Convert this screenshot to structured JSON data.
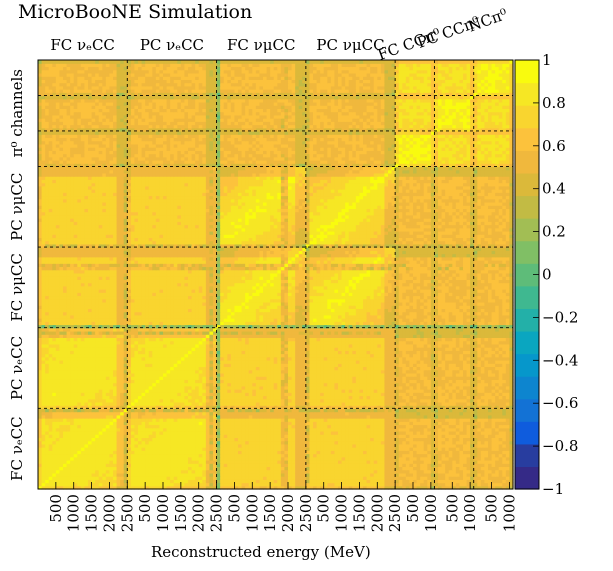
{
  "chart_data": {
    "type": "heatmap",
    "title": "MicroBooNE Simulation",
    "xlabel": "Reconstructed energy (MeV)",
    "zlim": [
      -1,
      1
    ],
    "colorbar_ticks": [
      "1",
      "0.8",
      "0.6",
      "0.4",
      "0.2",
      "0",
      "−0.2",
      "−0.4",
      "−0.6",
      "−0.8",
      "−1"
    ],
    "colorbar_values": [
      1,
      0.8,
      0.6,
      0.4,
      0.2,
      0,
      -0.2,
      -0.4,
      -0.6,
      -0.8,
      -1
    ],
    "palette": [
      "#352a87",
      "#283d9f",
      "#0f5cdd",
      "#1372d5",
      "#0d85cf",
      "#0697cb",
      "#0aa6c0",
      "#23b0a8",
      "#3fb890",
      "#5ebc79",
      "#80bf65",
      "#a2be54",
      "#c2bb44",
      "#dbb93a",
      "#f0b83d",
      "#fcc23c",
      "#f9d52f",
      "#f6e724",
      "#f9fb0e"
    ],
    "gridlines": true,
    "groups": [
      {
        "name": "FC νₑCC",
        "size": 25,
        "tick_labels": [
          "500",
          "1000",
          "1500",
          "2000",
          "2500"
        ]
      },
      {
        "name": "PC νₑCC",
        "size": 25,
        "tick_labels": [
          "500",
          "1000",
          "1500",
          "2000",
          "2500"
        ]
      },
      {
        "name": "FC νμCC",
        "size": 25,
        "tick_labels": [
          "500",
          "1000",
          "1500",
          "2000",
          "2500"
        ]
      },
      {
        "name": "PC νμCC",
        "size": 25,
        "tick_labels": [
          "500",
          "1000",
          "1500",
          "2000",
          "2500"
        ]
      },
      {
        "name": "FC CCπ⁰",
        "size": 11,
        "tick_labels": [
          "500",
          "1000"
        ]
      },
      {
        "name": "PC CCπ⁰",
        "size": 11,
        "tick_labels": [
          "500",
          "1000"
        ]
      },
      {
        "name": "NCπ⁰",
        "size": 11,
        "tick_labels": [
          "500",
          "1000"
        ]
      }
    ],
    "y_group_labels": [
      "FC νₑCC",
      "PC νₑCC",
      "FC νμCC",
      "PC νμCC",
      "π⁰ channels"
    ],
    "y_group_extents": [
      25,
      25,
      25,
      25,
      33
    ]
  }
}
